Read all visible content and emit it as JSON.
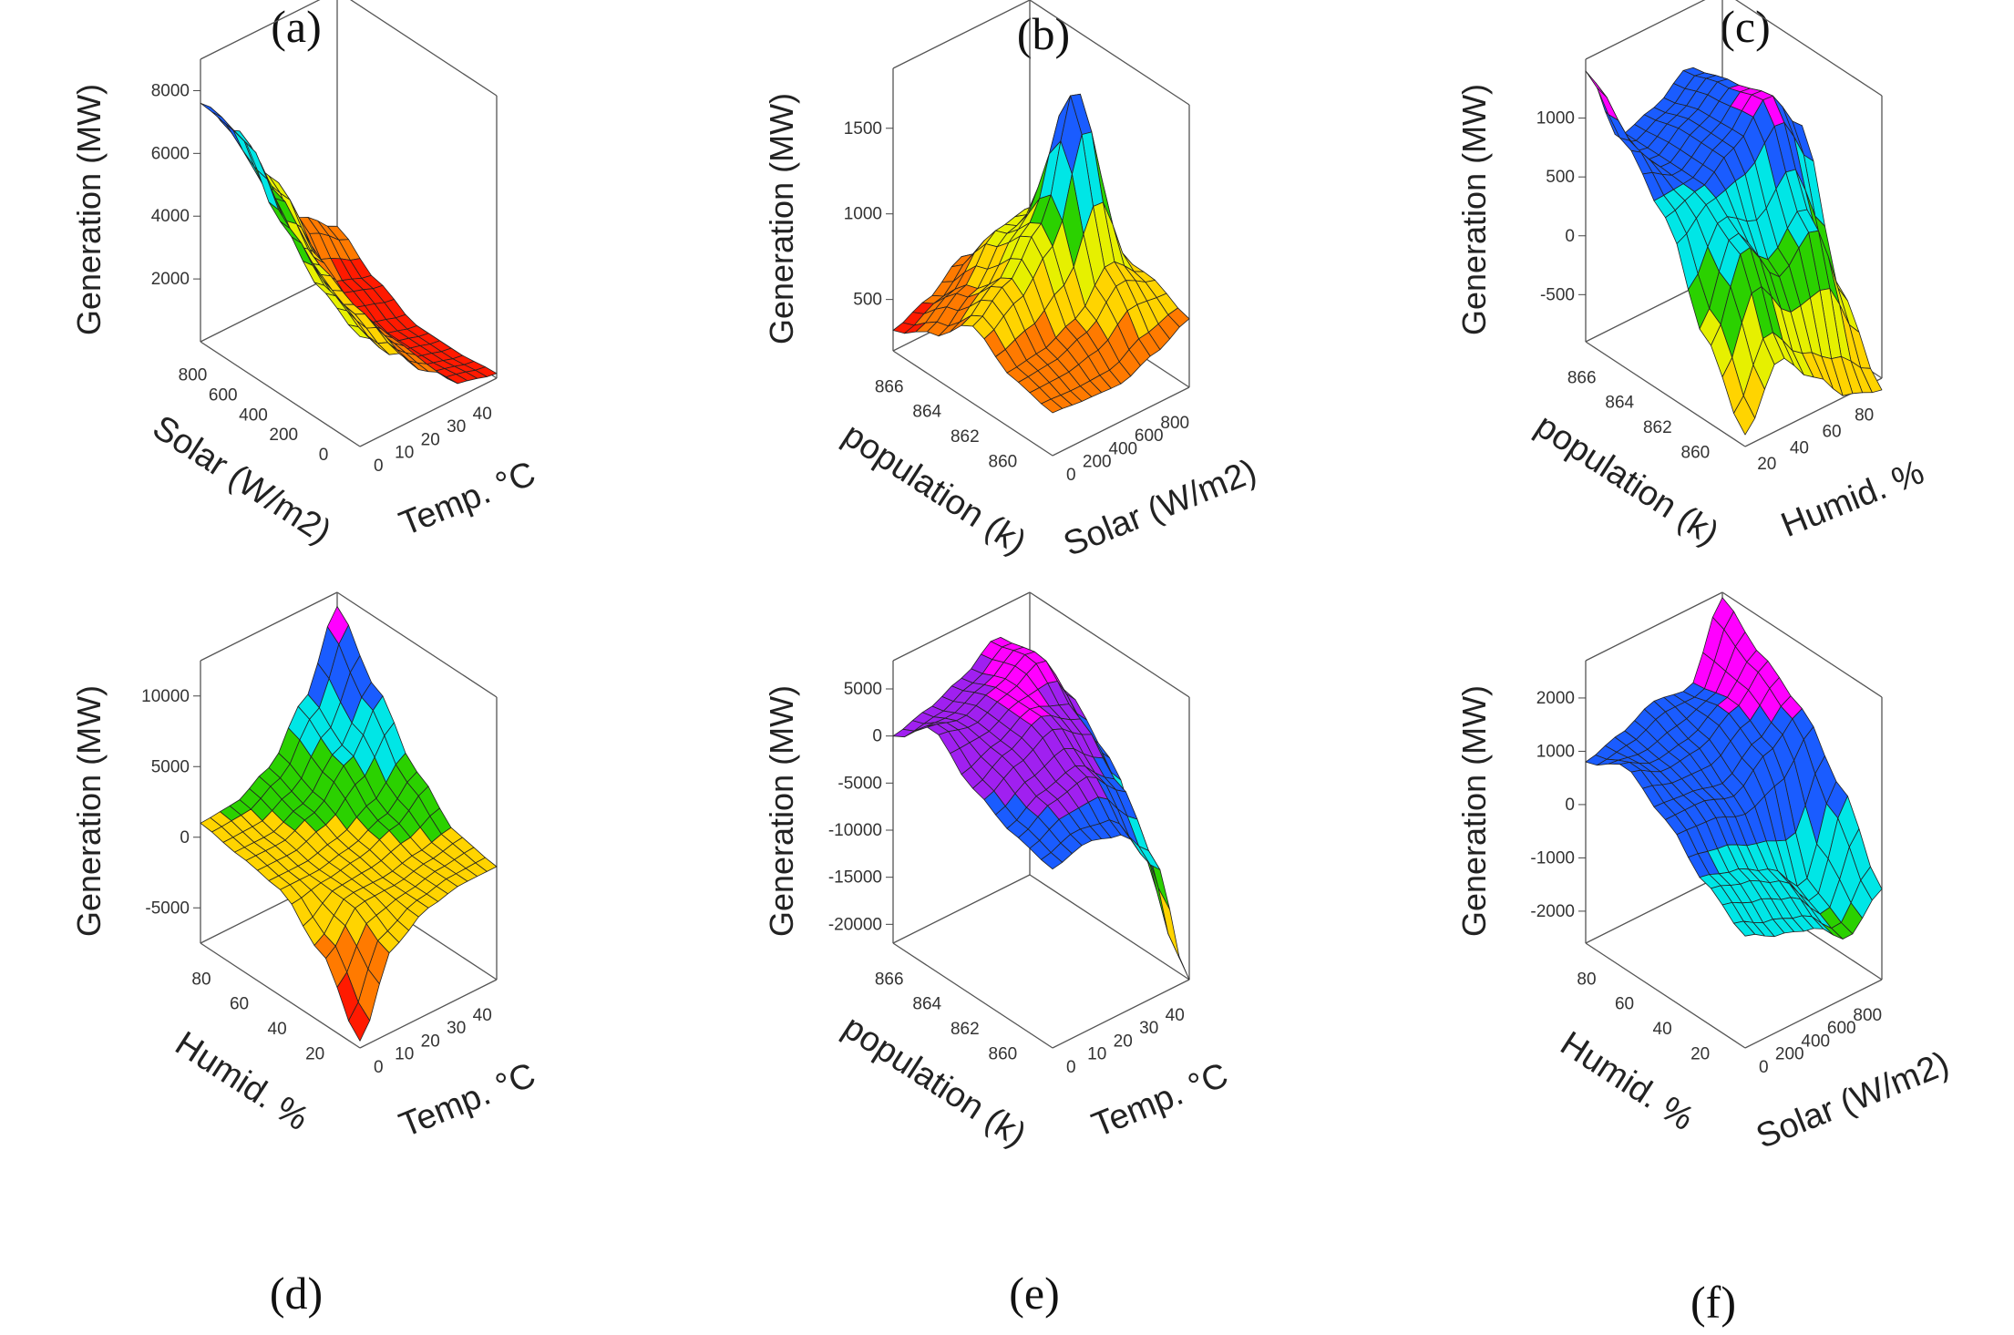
{
  "chart_data": [
    {
      "type": "surface3d",
      "panel": "(a)",
      "x": {
        "label": "Temp. °C",
        "ticks": [
          "0",
          "10",
          "20",
          "30",
          "40"
        ]
      },
      "y": {
        "label": "Solar (W/m2)",
        "ticks": [
          "0",
          "200",
          "400",
          "600",
          "800"
        ]
      },
      "z": {
        "label": "Generation (MW)",
        "ticks": [
          "2000",
          "4000",
          "6000",
          "8000"
        ],
        "range": [
          0,
          9000
        ]
      },
      "surface_grid": [
        [
          3500,
          2400,
          1300,
          400,
          150
        ],
        [
          4200,
          3000,
          1500,
          250,
          0
        ],
        [
          5500,
          3600,
          1700,
          250,
          0
        ],
        [
          7400,
          5000,
          2600,
          900,
          600
        ],
        [
          7600,
          6200,
          4200,
          2300,
          1500
        ]
      ],
      "colorscale": [
        "#ff1a00",
        "#ff7a00",
        "#ffd400",
        "#e6f000",
        "#2bd100",
        "#00e6e6",
        "#1a5cff",
        "#ff00ff"
      ]
    },
    {
      "type": "surface3d",
      "panel": "(b)",
      "x": {
        "label": "Solar (W/m2)",
        "ticks": [
          "0",
          "200",
          "400",
          "600",
          "800"
        ]
      },
      "y": {
        "label": "population (k)",
        "ticks": [
          "860",
          "862",
          "864",
          "866"
        ]
      },
      "z": {
        "label": "Generation (MW)",
        "ticks": [
          "500",
          "1000",
          "1500"
        ],
        "range": [
          200,
          1850
        ]
      },
      "surface_grid": [
        [
          450,
          430,
          420,
          500,
          600
        ],
        [
          500,
          520,
          600,
          800,
          700
        ],
        [
          650,
          800,
          1050,
          1750,
          700
        ],
        [
          450,
          600,
          850,
          900,
          550
        ],
        [
          320,
          400,
          550,
          450,
          450
        ]
      ],
      "colorscale": [
        "#ff1a00",
        "#ff7a00",
        "#ffd400",
        "#e6f000",
        "#2bd100",
        "#00e6e6",
        "#1a5cff",
        "#ff00ff"
      ]
    },
    {
      "type": "surface3d",
      "panel": "(c)",
      "x": {
        "label": "Humid. %",
        "ticks": [
          "20",
          "40",
          "60",
          "80"
        ]
      },
      "y": {
        "label": "population (k)",
        "ticks": [
          "860",
          "862",
          "864",
          "866"
        ]
      },
      "z": {
        "label": "Generation (MW)",
        "ticks": [
          "-500",
          "0",
          "500",
          "1000"
        ],
        "range": [
          -900,
          1500
        ]
      },
      "surface_grid": [
        [
          -800,
          -300,
          -600,
          -900,
          -1000
        ],
        [
          -200,
          500,
          100,
          400,
          -400
        ],
        [
          600,
          700,
          900,
          1200,
          800
        ],
        [
          1000,
          700,
          900,
          1100,
          600
        ],
        [
          1400,
          700,
          800,
          1000,
          500
        ]
      ],
      "colorscale": [
        "#ffd400",
        "#e6f000",
        "#2bd100",
        "#00e6e6",
        "#1a5cff",
        "#ff00ff"
      ]
    },
    {
      "type": "surface3d",
      "panel": "(d)",
      "x": {
        "label": "Temp. °C",
        "ticks": [
          "0",
          "10",
          "20",
          "30",
          "40"
        ]
      },
      "y": {
        "label": "Humid. %",
        "ticks": [
          "20",
          "40",
          "60",
          "80"
        ]
      },
      "z": {
        "label": "Generation (MW)",
        "ticks": [
          "-5000",
          "0",
          "5000",
          "10000"
        ],
        "range": [
          -7500,
          12500
        ]
      },
      "surface_grid": [
        [
          -7000,
          -1500,
          0,
          500,
          500
        ],
        [
          -2500,
          0,
          0,
          500,
          1000
        ],
        [
          0,
          0,
          500,
          1500,
          3500
        ],
        [
          500,
          500,
          1500,
          4000,
          7500
        ],
        [
          1000,
          1200,
          2500,
          6000,
          11500
        ]
      ],
      "colorscale": [
        "#ff1a00",
        "#ff7a00",
        "#ffd400",
        "#2bd100",
        "#00e6e6",
        "#1a5cff",
        "#ff00ff"
      ]
    },
    {
      "type": "surface3d",
      "panel": "(e)",
      "x": {
        "label": "Temp. °C",
        "ticks": [
          "0",
          "10",
          "20",
          "30",
          "40"
        ]
      },
      "y": {
        "label": "population (k)",
        "ticks": [
          "860",
          "862",
          "864",
          "866"
        ]
      },
      "z": {
        "label": "Generation (MW)",
        "ticks": [
          "-20000",
          "-15000",
          "-10000",
          "-5000",
          "0",
          "5000"
        ],
        "range": [
          -22000,
          8000
        ]
      },
      "surface_grid": [
        [
          -3000,
          -2000,
          -3000,
          -8000,
          -22000
        ],
        [
          -2000,
          0,
          1000,
          -2000,
          -12000
        ],
        [
          0,
          2000,
          4000,
          2000,
          -4000
        ],
        [
          3500,
          2500,
          4000,
          6000,
          0
        ],
        [
          0,
          1000,
          2500,
          5000,
          1000
        ]
      ],
      "colorscale": [
        "#ff1a00",
        "#ffd400",
        "#2bd100",
        "#00e6e6",
        "#1a5cff",
        "#a020f0",
        "#ff00ff"
      ]
    },
    {
      "type": "surface3d",
      "panel": "(f)",
      "x": {
        "label": "Solar (W/m2)",
        "ticks": [
          "0",
          "200",
          "400",
          "600",
          "800"
        ]
      },
      "y": {
        "label": "Humid. %",
        "ticks": [
          "20",
          "40",
          "60",
          "80"
        ]
      },
      "z": {
        "label": "Generation (MW)",
        "ticks": [
          "-2000",
          "-1000",
          "0",
          "1000",
          "2000"
        ],
        "range": [
          -2600,
          2700
        ]
      },
      "surface_grid": [
        [
          -500,
          -800,
          -1000,
          -1500,
          -900
        ],
        [
          0,
          -200,
          -500,
          -1200,
          500
        ],
        [
          700,
          700,
          500,
          1000,
          1500
        ],
        [
          1200,
          900,
          1000,
          1400,
          2000
        ],
        [
          800,
          1000,
          1300,
          1200,
          2600
        ]
      ],
      "colorscale": [
        "#2bd100",
        "#00e6e6",
        "#1a5cff",
        "#ff00ff"
      ]
    }
  ]
}
